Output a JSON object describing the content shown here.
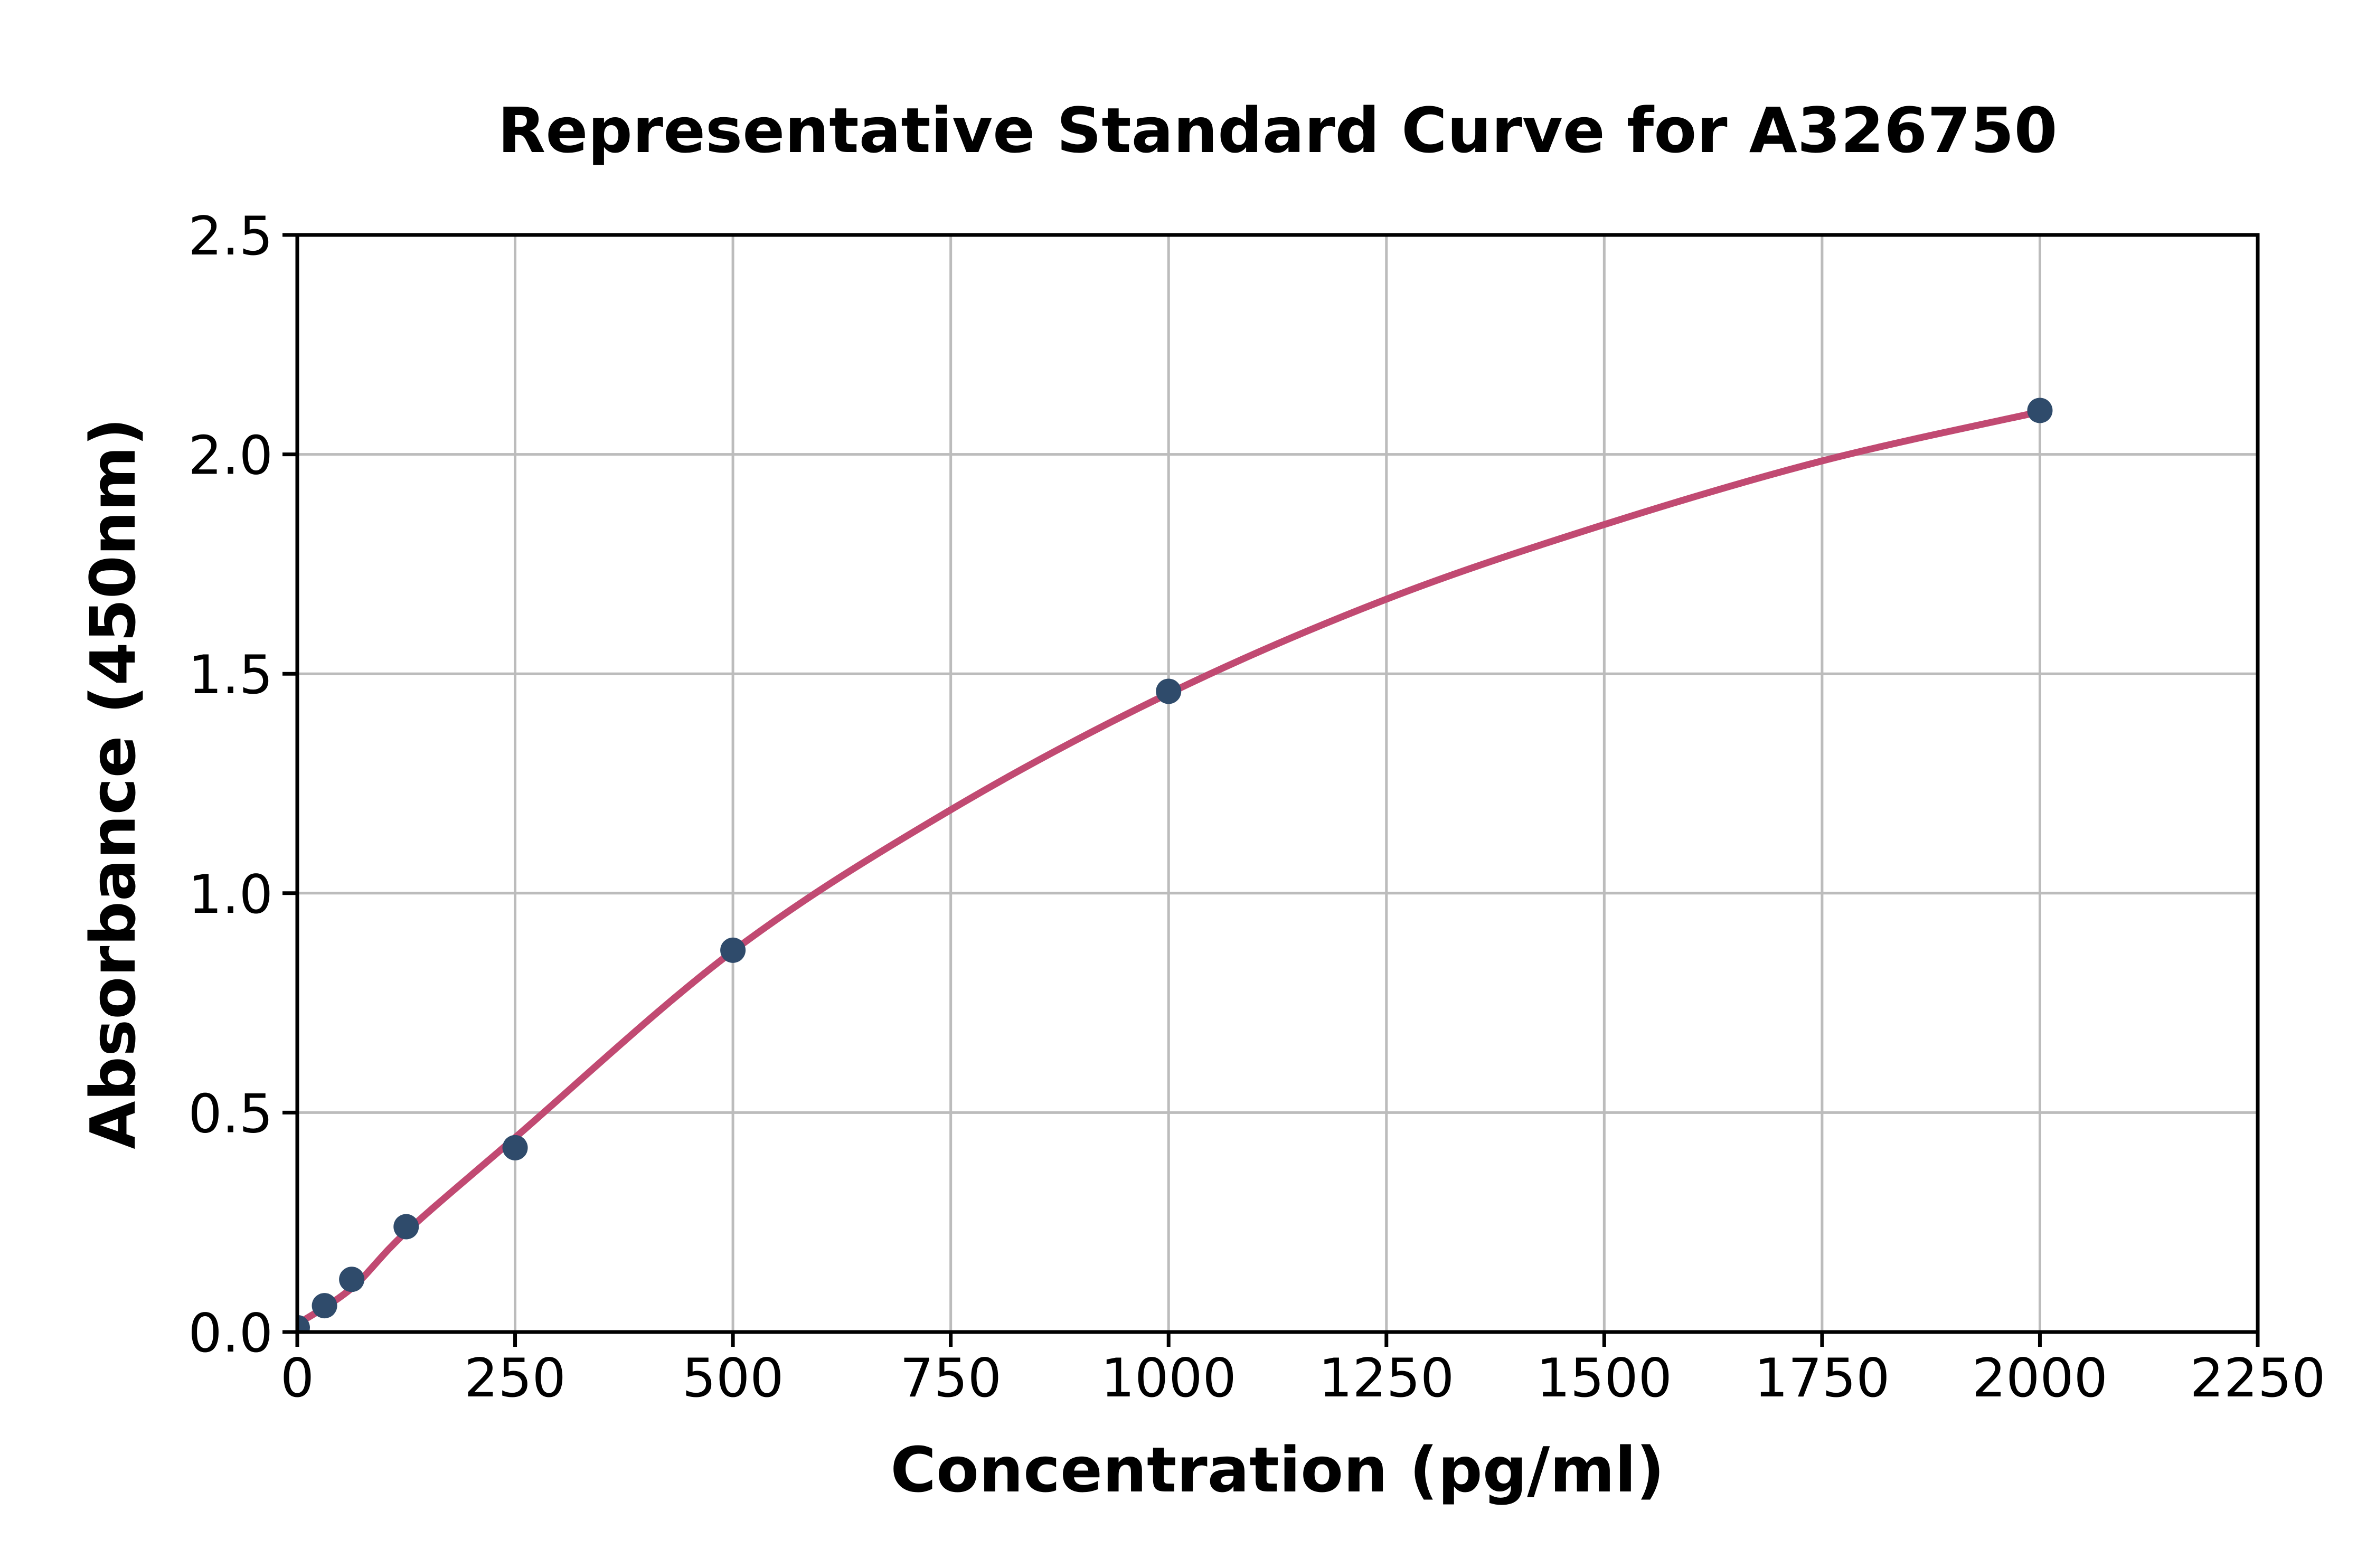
{
  "chart_data": {
    "type": "scatter",
    "title": "Representative Standard Curve for A326750",
    "xlabel": "Concentration (pg/ml)",
    "ylabel": "Absorbance (450nm)",
    "xlim": [
      0,
      2250
    ],
    "ylim": [
      0,
      2.5
    ],
    "x_ticks": [
      0,
      250,
      500,
      750,
      1000,
      1250,
      1500,
      1750,
      2000,
      2250
    ],
    "x_tick_labels": [
      "0",
      "250",
      "500",
      "750",
      "1000",
      "1250",
      "1500",
      "1750",
      "2000",
      "2250"
    ],
    "y_ticks": [
      0.0,
      0.5,
      1.0,
      1.5,
      2.0,
      2.5
    ],
    "y_tick_labels": [
      "0.0",
      "0.5",
      "1.0",
      "1.5",
      "2.0",
      "2.5"
    ],
    "grid": true,
    "legend_position": "none",
    "series": [
      {
        "name": "standard-points",
        "kind": "scatter",
        "marker": "circle",
        "color": "#2f4b6b",
        "points": [
          {
            "x": 0,
            "y": 0.01
          },
          {
            "x": 31.25,
            "y": 0.06
          },
          {
            "x": 62.5,
            "y": 0.12
          },
          {
            "x": 125,
            "y": 0.24
          },
          {
            "x": 250,
            "y": 0.42
          },
          {
            "x": 500,
            "y": 0.87
          },
          {
            "x": 1000,
            "y": 1.46
          },
          {
            "x": 2000,
            "y": 2.1
          }
        ]
      },
      {
        "name": "fitted-curve",
        "kind": "line",
        "color": "#c14a72",
        "points": [
          {
            "x": 0,
            "y": 0.018
          },
          {
            "x": 62.5,
            "y": 0.1
          },
          {
            "x": 125,
            "y": 0.228
          },
          {
            "x": 250,
            "y": 0.443
          },
          {
            "x": 500,
            "y": 0.868
          },
          {
            "x": 750,
            "y": 1.19
          },
          {
            "x": 1000,
            "y": 1.455
          },
          {
            "x": 1250,
            "y": 1.67
          },
          {
            "x": 1500,
            "y": 1.84
          },
          {
            "x": 1750,
            "y": 1.985
          },
          {
            "x": 2000,
            "y": 2.097
          }
        ]
      }
    ],
    "colors": {
      "background": "#ffffff",
      "axes": "#000000",
      "gridline": "#bcbcbc",
      "curve": "#c14a72",
      "marker": "#2f4b6b",
      "text": "#000000"
    }
  }
}
